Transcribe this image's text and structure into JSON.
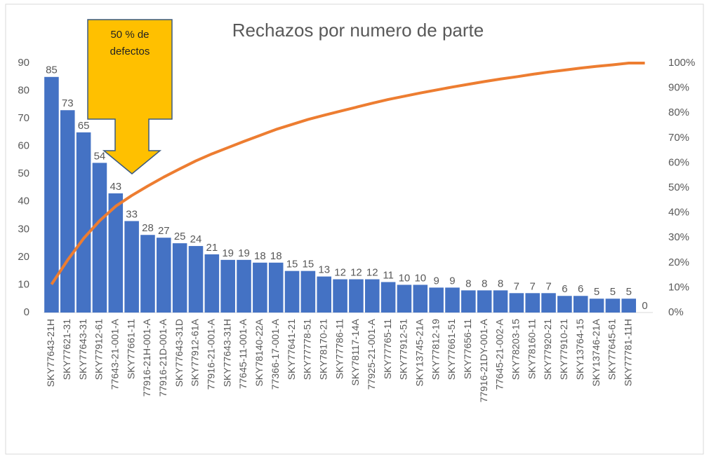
{
  "chart_data": {
    "type": "pareto",
    "title": "Rechazos por numero de parte",
    "annotation": "50 % de defectos",
    "categories": [
      "SKY77643-21H",
      "SKY77621-31",
      "SKY77643-31",
      "SKY77912-61",
      "77643-21-001-A",
      "SKY77661-11",
      "77916-21H-001-A",
      "77916-21D-001-A",
      "SKY77643-31D",
      "SKY77912-61A",
      "77916-21-001-A",
      "SKY77643-31H",
      "77645-11-001-A",
      "SKY78140-22A",
      "77366-17-001-A",
      "SKY77641-21",
      "SKY77778-51",
      "SKY78170-21",
      "SKY77786-11",
      "SKY78117-14A",
      "77925-21-001-A",
      "SKY77765-11",
      "SKY77912-51",
      "SKY13745-21A",
      "SKY77812-19",
      "SKY77661-51",
      "SKY77656-11",
      "77916-21DY-001-A",
      "77645-21-002-A",
      "SKY78203-15",
      "SKY78160-11",
      "SKY77920-21",
      "SKY77910-21",
      "SKY13764-15",
      "SKY13746-21A",
      "SKY77645-61",
      "SKY77781-11H",
      null
    ],
    "series": [
      {
        "type": "bar",
        "color": "#4472c4",
        "values": [
          85,
          73,
          65,
          54,
          43,
          33,
          28,
          27,
          25,
          24,
          21,
          19,
          19,
          18,
          18,
          15,
          15,
          13,
          12,
          12,
          12,
          11,
          10,
          10,
          9,
          9,
          8,
          8,
          8,
          7,
          7,
          7,
          6,
          6,
          5,
          5,
          5,
          0
        ]
      },
      {
        "type": "line",
        "axis": "y2",
        "color": "#ed7d31",
        "values": [
          11.3,
          21.0,
          29.7,
          36.8,
          42.6,
          46.9,
          50.7,
          54.3,
          57.6,
          60.8,
          63.6,
          66.1,
          68.6,
          71.0,
          73.4,
          75.4,
          77.4,
          79.1,
          80.7,
          82.3,
          83.9,
          85.4,
          86.7,
          88.0,
          89.2,
          90.4,
          91.5,
          92.6,
          93.6,
          94.5,
          95.5,
          96.4,
          97.2,
          98.0,
          98.7,
          99.3,
          100,
          100
        ]
      }
    ],
    "ylim": [
      0,
      90
    ],
    "yticks": [
      0,
      10,
      20,
      30,
      40,
      50,
      60,
      70,
      80,
      90
    ],
    "y2lim": [
      0,
      100
    ],
    "y2ticks": [
      {
        "value": 0,
        "label": "0%"
      },
      {
        "value": 10,
        "label": "10%"
      },
      {
        "value": 20,
        "label": "20%"
      },
      {
        "value": 30,
        "label": "30%"
      },
      {
        "value": 40,
        "label": "40%"
      },
      {
        "value": 50,
        "label": "50%"
      },
      {
        "value": 60,
        "label": "60%"
      },
      {
        "value": 70,
        "label": "70%"
      },
      {
        "value": 80,
        "label": "80%"
      },
      {
        "value": 90,
        "label": "90%"
      },
      {
        "value": 100,
        "label": "100%"
      }
    ]
  }
}
